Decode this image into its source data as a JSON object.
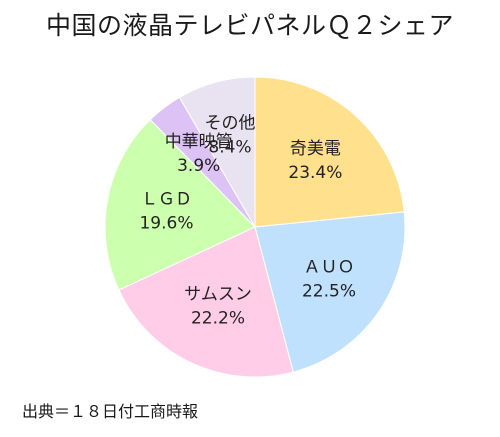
{
  "chart_data": {
    "type": "pie",
    "title": "中国の液晶テレビパネルＱ２シェア",
    "start": "12 o'clock",
    "direction": "clockwise",
    "slices": [
      {
        "label": "奇美電",
        "value": 23.4,
        "display": "23.4%",
        "color": "#ffe08c"
      },
      {
        "label": "ＡＵＯ",
        "value": 22.5,
        "display": "22.5%",
        "color": "#bfe1fd"
      },
      {
        "label": "サムスン",
        "value": 22.2,
        "display": "22.2%",
        "color": "#ffcde8"
      },
      {
        "label": "ＬＧＤ",
        "value": 19.6,
        "display": "19.6%",
        "color": "#ccffae"
      },
      {
        "label": "中華映管",
        "value": 3.9,
        "display": "3.9%",
        "color": "#ddc2f6"
      },
      {
        "label": "その他",
        "value": 8.4,
        "display": "8.4%",
        "color": "#e8e2f1"
      }
    ]
  },
  "source": "出典＝１８日付工商時報"
}
